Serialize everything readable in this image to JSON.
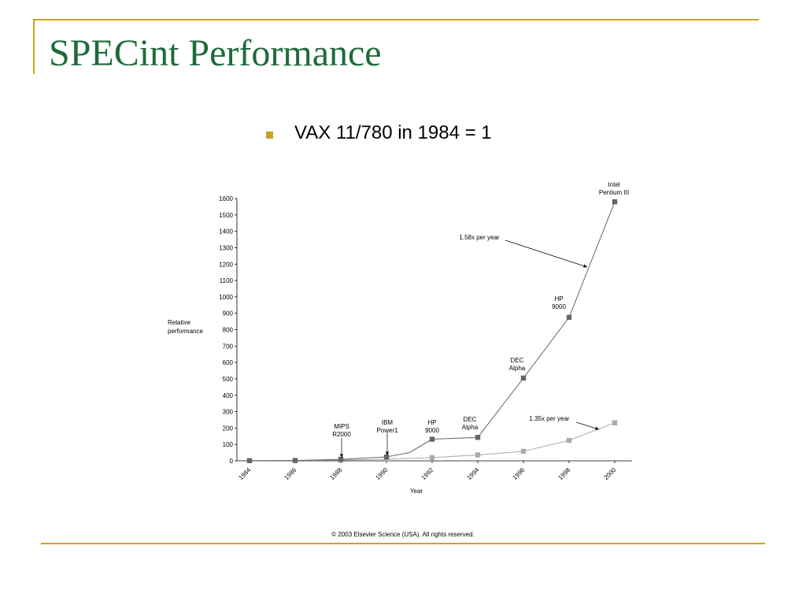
{
  "slide": {
    "title": "SPECint Performance",
    "bullet": "VAX 11/780 in 1984 = 1",
    "copyright": "© 2003 Elsevier Science (USA). All rights reserved."
  },
  "colors": {
    "title": "#1e6b3a",
    "accent": "#d4a017",
    "series_dark": "#666666",
    "series_light": "#aaaaaa"
  },
  "chart_data": {
    "type": "line",
    "ylabel": "Relative\nperformance",
    "xlabel": "Year",
    "xlim": [
      1984,
      2000
    ],
    "ylim": [
      0,
      1600
    ],
    "yticks": [
      0,
      100,
      200,
      300,
      400,
      500,
      600,
      700,
      800,
      900,
      1000,
      1100,
      1200,
      1300,
      1400,
      1500,
      1600
    ],
    "xticks": [
      1984,
      1986,
      1988,
      1990,
      1992,
      1994,
      1996,
      1998,
      2000
    ],
    "grid": false,
    "series": [
      {
        "color": "#666666",
        "points": [
          {
            "x": 1984,
            "y": 1,
            "marker": true
          },
          {
            "x": 1986,
            "y": 2,
            "marker": true
          },
          {
            "x": 1988,
            "y": 9,
            "marker": true
          },
          {
            "x": 1990,
            "y": 24,
            "marker": true
          },
          {
            "x": 1991,
            "y": 50,
            "marker": false
          },
          {
            "x": 1992,
            "y": 132,
            "marker": true
          },
          {
            "x": 1994,
            "y": 143,
            "marker": true
          },
          {
            "x": 1996,
            "y": 505,
            "marker": true
          },
          {
            "x": 1998,
            "y": 875,
            "marker": true
          },
          {
            "x": 2000,
            "y": 1580,
            "marker": true
          }
        ]
      },
      {
        "color": "#aaaaaa",
        "points": [
          {
            "x": 1984,
            "y": 1,
            "marker": true
          },
          {
            "x": 1986,
            "y": 2,
            "marker": true
          },
          {
            "x": 1988,
            "y": 5,
            "marker": true
          },
          {
            "x": 1990,
            "y": 10,
            "marker": true
          },
          {
            "x": 1992,
            "y": 20,
            "marker": true
          },
          {
            "x": 1994,
            "y": 36,
            "marker": true
          },
          {
            "x": 1996,
            "y": 58,
            "marker": true
          },
          {
            "x": 1998,
            "y": 125,
            "marker": true
          },
          {
            "x": 2000,
            "y": 232,
            "marker": true
          }
        ]
      }
    ],
    "annotations": [
      {
        "lines": [
          "MIPS",
          "R2000"
        ],
        "x": 1988,
        "y": 9
      },
      {
        "lines": [
          "IBM",
          "Power1"
        ],
        "x": 1990,
        "y": 24
      },
      {
        "lines": [
          "HP",
          "9000"
        ],
        "x": 1992,
        "y": 132
      },
      {
        "lines": [
          "DEC",
          "Alpha"
        ],
        "x": 1993.7,
        "y": 143
      },
      {
        "lines": [
          "DEC",
          "Alpha"
        ],
        "x": 1995.7,
        "y": 505
      },
      {
        "lines": [
          "HP",
          "9000"
        ],
        "x": 1997.6,
        "y": 875
      },
      {
        "lines": [
          "Intel",
          "Pentium III"
        ],
        "x": 2000,
        "y": 1580
      },
      {
        "lines": [
          "1.58x per year"
        ],
        "x": 1999.3,
        "y": 1175
      },
      {
        "lines": [
          "1.35x per year"
        ],
        "x": 1999.5,
        "y": 195
      }
    ]
  }
}
